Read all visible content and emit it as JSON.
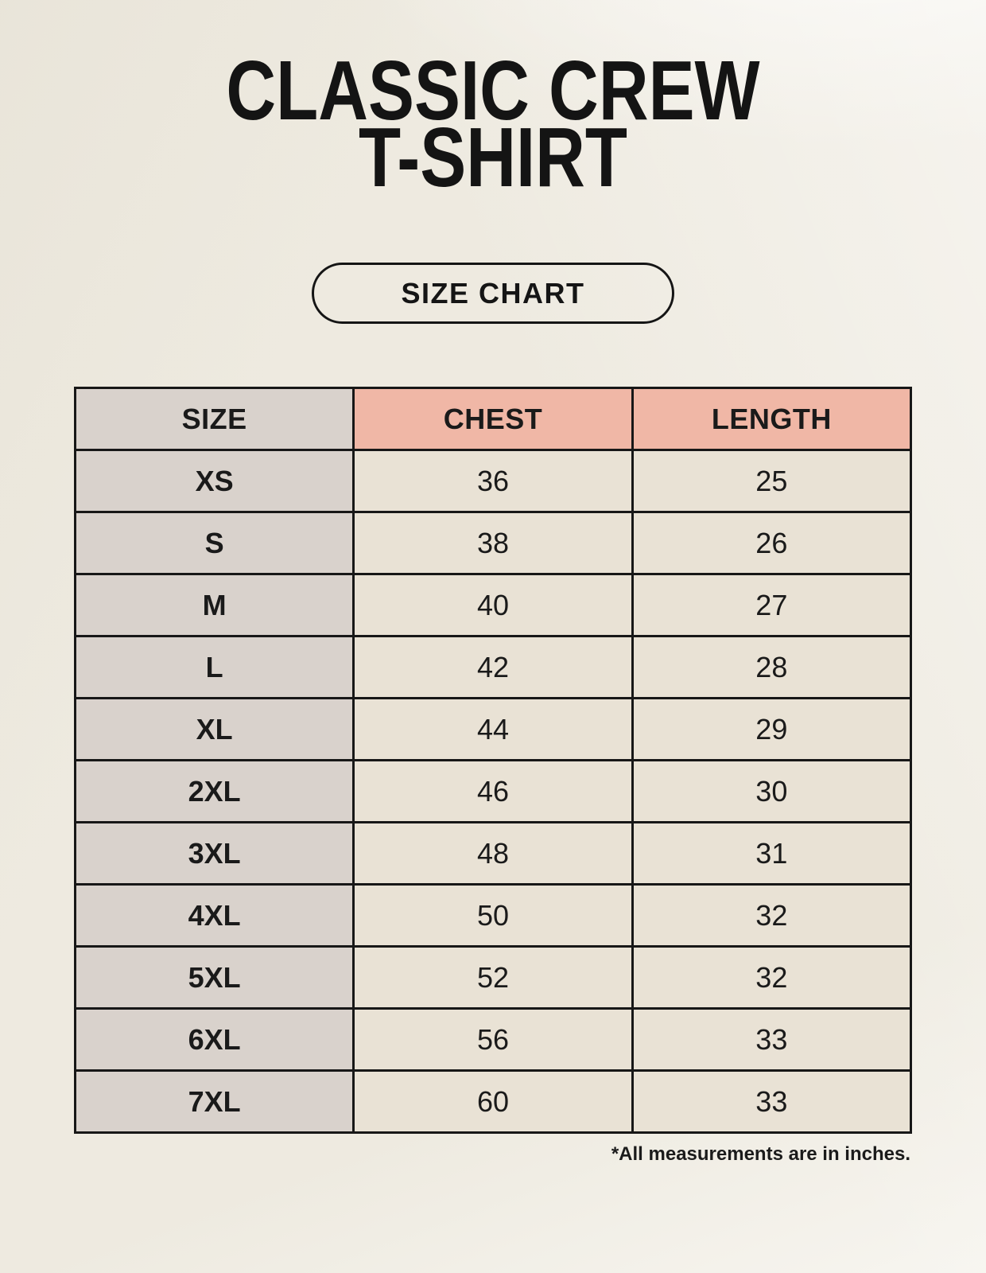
{
  "page": {
    "title_line1": "CLASSIC CREW",
    "title_line2": "T-SHIRT",
    "badge_label": "SIZE CHART",
    "footnote": "*All measurements are in inches."
  },
  "table": {
    "columns": [
      "SIZE",
      "CHEST",
      "LENGTH"
    ],
    "rows": [
      {
        "size": "XS",
        "chest": "36",
        "length": "25"
      },
      {
        "size": "S",
        "chest": "38",
        "length": "26"
      },
      {
        "size": "M",
        "chest": "40",
        "length": "27"
      },
      {
        "size": "L",
        "chest": "42",
        "length": "28"
      },
      {
        "size": "XL",
        "chest": "44",
        "length": "29"
      },
      {
        "size": "2XL",
        "chest": "46",
        "length": "30"
      },
      {
        "size": "3XL",
        "chest": "48",
        "length": "31"
      },
      {
        "size": "4XL",
        "chest": "50",
        "length": "32"
      },
      {
        "size": "5XL",
        "chest": "52",
        "length": "32"
      },
      {
        "size": "6XL",
        "chest": "56",
        "length": "33"
      },
      {
        "size": "7XL",
        "chest": "60",
        "length": "33"
      }
    ]
  },
  "colors": {
    "background": "#f1eee5",
    "size_column_bg": "#d9d2cc",
    "measure_header_bg": "#f0b7a6",
    "value_cell_bg": "#e9e2d5",
    "border": "#171717",
    "text": "#1a1a1a"
  }
}
